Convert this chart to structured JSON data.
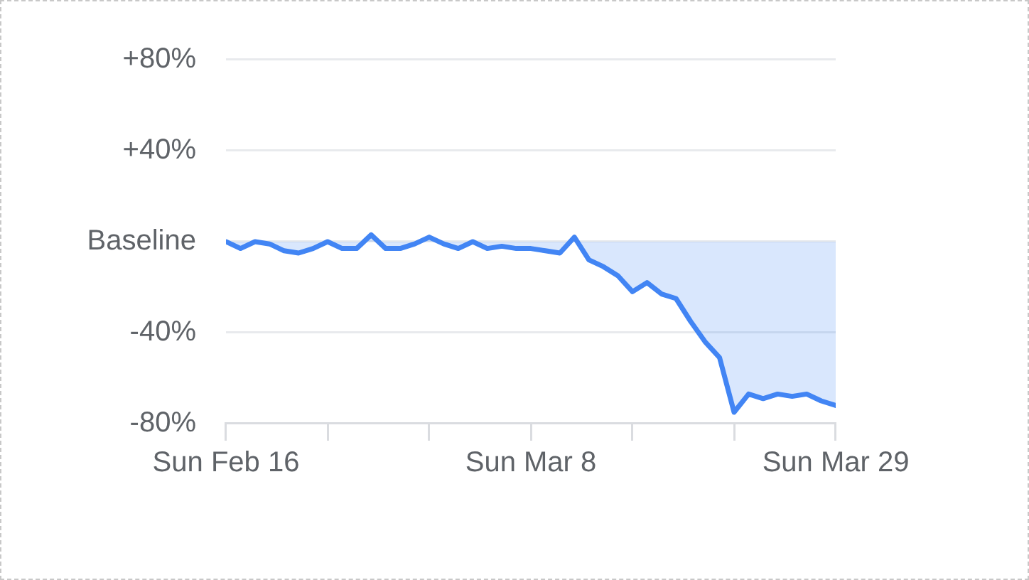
{
  "chart_data": {
    "type": "area",
    "x": [
      "--02-16",
      "--02-17",
      "--02-18",
      "--02-19",
      "--02-20",
      "--02-21",
      "--02-22",
      "--02-23",
      "--02-24",
      "--02-25",
      "--02-26",
      "--02-27",
      "--02-28",
      "--02-29",
      "--03-01",
      "--03-02",
      "--03-03",
      "--03-04",
      "--03-05",
      "--03-06",
      "--03-07",
      "--03-08",
      "--03-09",
      "--03-10",
      "--03-11",
      "--03-12",
      "--03-13",
      "--03-14",
      "--03-15",
      "--03-16",
      "--03-17",
      "--03-18",
      "--03-19",
      "--03-20",
      "--03-21",
      "--03-22",
      "--03-23",
      "--03-24",
      "--03-25",
      "--03-26",
      "--03-27",
      "--03-28",
      "--03-29"
    ],
    "series": [
      {
        "color": "#4285f4",
        "values": [
          0,
          -3,
          0,
          -1,
          -4,
          -5,
          -3,
          0,
          -3,
          -3,
          3,
          -3,
          -3,
          -1,
          2,
          -1,
          -3,
          0,
          -3,
          -2,
          -3,
          -3,
          -4,
          -5,
          2,
          -8,
          -11,
          -15,
          -22,
          -18,
          -23,
          -25,
          -35,
          -44,
          -51,
          -75,
          -67,
          -69,
          -67,
          -68,
          -67,
          -70,
          -72
        ]
      }
    ],
    "xlim": [
      "--02-16",
      "--03-29"
    ],
    "xticks": [
      {
        "value": "--02-16",
        "label": "Sun Feb 16"
      },
      {
        "value": "--02-23",
        "label": null
      },
      {
        "value": "--03-01",
        "label": null
      },
      {
        "value": "--03-08",
        "label": "Sun Mar 8"
      },
      {
        "value": "--03-15",
        "label": null
      },
      {
        "value": "--03-22",
        "label": null
      },
      {
        "value": "--03-29",
        "label": "Sun Mar 29"
      }
    ],
    "ylim": [
      -80,
      80
    ],
    "yticks": [
      {
        "value": -80,
        "label": "-80%"
      },
      {
        "value": -40,
        "label": "-40%"
      },
      {
        "value": 0,
        "label": "Baseline"
      },
      {
        "value": 40,
        "label": "+40%"
      },
      {
        "value": 80,
        "label": "+80%"
      }
    ],
    "grid": "y",
    "legend": false
  }
}
